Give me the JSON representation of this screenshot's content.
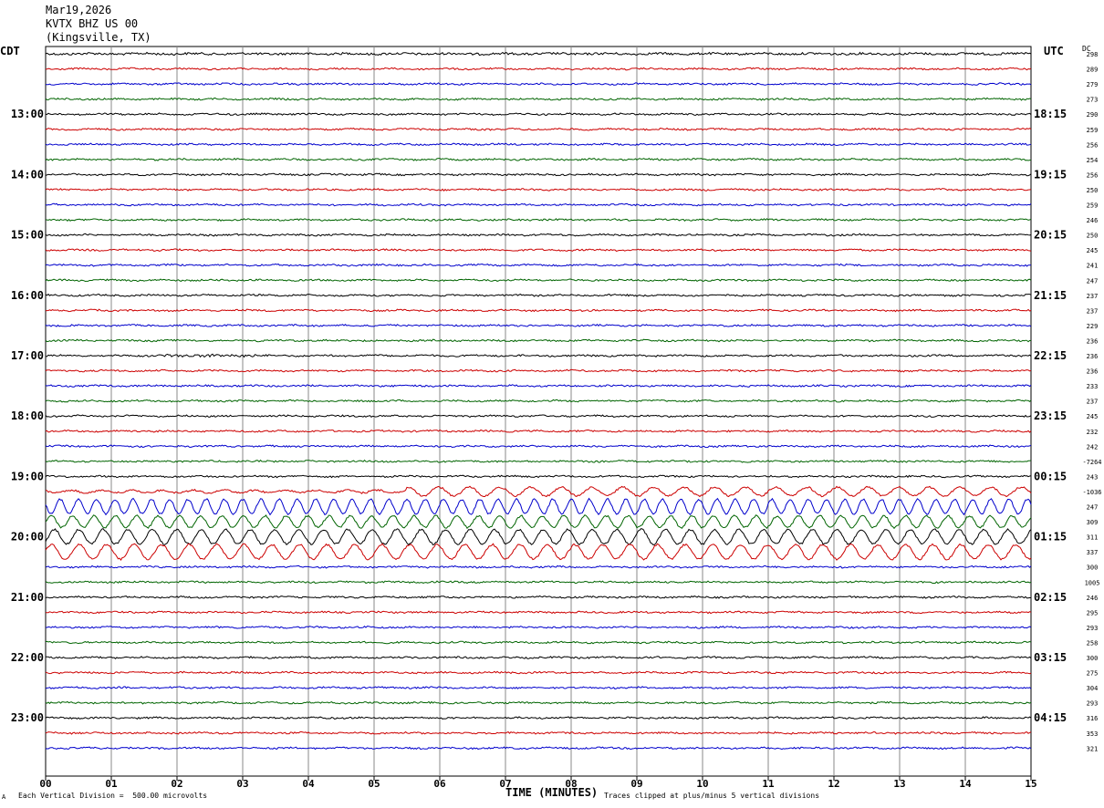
{
  "header": {
    "date": "Mar19,2026",
    "station": "KVTX BHZ US 00",
    "location": "(Kingsville, TX)"
  },
  "left_label": "CDT",
  "right_label": "UTC",
  "dc_label": "DC",
  "footer": {
    "scale_note": "Each Vertical Division =  500.00 microvolts",
    "clip_note": "Traces clipped at plus/minus 5 vertical divisions",
    "corner_mark": "A"
  },
  "chart_data": {
    "type": "line",
    "title": "",
    "xlabel": "TIME (MINUTES)",
    "x_ticks": [
      "00",
      "01",
      "02",
      "03",
      "04",
      "05",
      "06",
      "07",
      "08",
      "09",
      "10",
      "11",
      "12",
      "13",
      "14",
      "15"
    ],
    "xlim": [
      0,
      15
    ],
    "left_hour_labels": [
      {
        "trace": 4,
        "label": "13:00"
      },
      {
        "trace": 8,
        "label": "14:00"
      },
      {
        "trace": 12,
        "label": "15:00"
      },
      {
        "trace": 16,
        "label": "16:00"
      },
      {
        "trace": 20,
        "label": "17:00"
      },
      {
        "trace": 24,
        "label": "18:00"
      },
      {
        "trace": 28,
        "label": "19:00"
      },
      {
        "trace": 32,
        "label": "20:00"
      },
      {
        "trace": 36,
        "label": "21:00"
      },
      {
        "trace": 40,
        "label": "22:00"
      },
      {
        "trace": 44,
        "label": "23:00"
      }
    ],
    "right_hour_labels": [
      {
        "trace": 4,
        "label": "18:15"
      },
      {
        "trace": 8,
        "label": "19:15"
      },
      {
        "trace": 12,
        "label": "20:15"
      },
      {
        "trace": 16,
        "label": "21:15"
      },
      {
        "trace": 20,
        "label": "22:15"
      },
      {
        "trace": 24,
        "label": "23:15"
      },
      {
        "trace": 28,
        "label": "00:15"
      },
      {
        "trace": 32,
        "label": "01:15"
      },
      {
        "trace": 36,
        "label": "02:15"
      },
      {
        "trace": 40,
        "label": "03:15"
      },
      {
        "trace": 44,
        "label": "04:15"
      }
    ],
    "dc_offsets": [
      "298",
      "289",
      "279",
      "273",
      "290",
      "259",
      "256",
      "254",
      "256",
      "250",
      "259",
      "246",
      "250",
      "245",
      "241",
      "247",
      "237",
      "237",
      "229",
      "236",
      "236",
      "236",
      "233",
      "237",
      "245",
      "232",
      "242",
      "-7264",
      "243",
      "-1036",
      "247",
      "309",
      "311",
      "337",
      "300",
      "1005",
      "246",
      "295",
      "293",
      "258",
      "300",
      "275",
      "304",
      "293",
      "316",
      "353",
      "321"
    ],
    "trace_colors": [
      "#000000",
      "#cc0000",
      "#0000cc",
      "#006400"
    ],
    "trace_count": 47,
    "trace_activity": [
      {
        "trace": 0,
        "start_min": 0,
        "end_min": 15,
        "amplitude": 1.2
      },
      {
        "trace": 20,
        "start_min": 1.8,
        "end_min": 3.2,
        "amplitude": 1.6
      },
      {
        "trace": 29,
        "start_min": 5.5,
        "end_min": 15,
        "amplitude": 3.0
      },
      {
        "trace": 30,
        "start_min": 0,
        "end_min": 15,
        "amplitude": 5.0
      },
      {
        "trace": 31,
        "start_min": 0,
        "end_min": 15,
        "amplitude": 4.0
      },
      {
        "trace": 32,
        "start_min": 0,
        "end_min": 15,
        "amplitude": 5.0
      },
      {
        "trace": 33,
        "start_min": 0,
        "end_min": 15,
        "amplitude": 5.0
      }
    ]
  }
}
